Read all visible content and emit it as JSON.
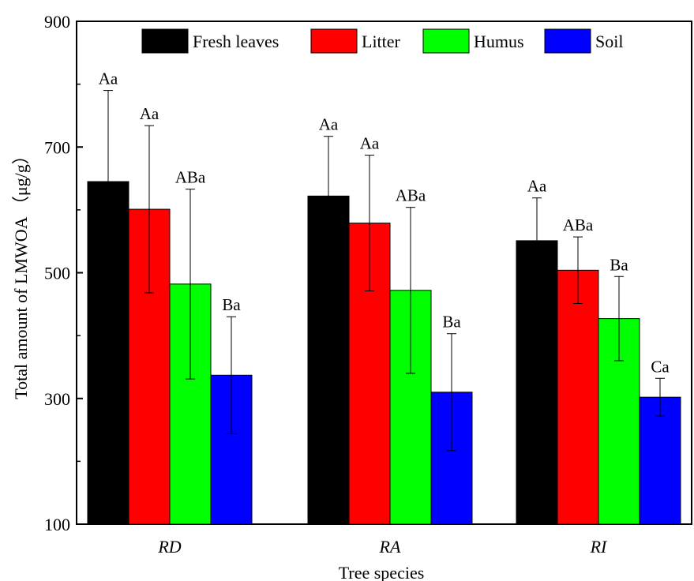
{
  "chart_data": {
    "type": "bar",
    "xlabel": "Tree species",
    "ylabel": "Total amount of LMWOA （μg/g）",
    "ylim": [
      100,
      900
    ],
    "yticks": [
      100,
      300,
      500,
      700,
      900
    ],
    "categories": [
      "RD",
      "RA",
      "RI"
    ],
    "legend_position": "top",
    "series": [
      {
        "name": "Fresh leaves",
        "color": "#000000",
        "values": [
          645,
          622,
          551
        ],
        "error": [
          145,
          95,
          68
        ],
        "letters": [
          "Aa",
          "Aa",
          "Aa"
        ]
      },
      {
        "name": "Litter",
        "color": "#ff0000",
        "values": [
          601,
          579,
          504
        ],
        "error": [
          133,
          108,
          53
        ],
        "letters": [
          "Aa",
          "Aa",
          "ABa"
        ]
      },
      {
        "name": "Humus",
        "color": "#00ff00",
        "values": [
          482,
          472,
          427
        ],
        "error": [
          151,
          132,
          67
        ],
        "letters": [
          "ABa",
          "ABa",
          "Ba"
        ]
      },
      {
        "name": "Soil",
        "color": "#0000ff",
        "values": [
          337,
          310,
          302
        ],
        "error": [
          93,
          93,
          30
        ],
        "letters": [
          "Ba",
          "Ba",
          "Ca"
        ]
      }
    ]
  }
}
